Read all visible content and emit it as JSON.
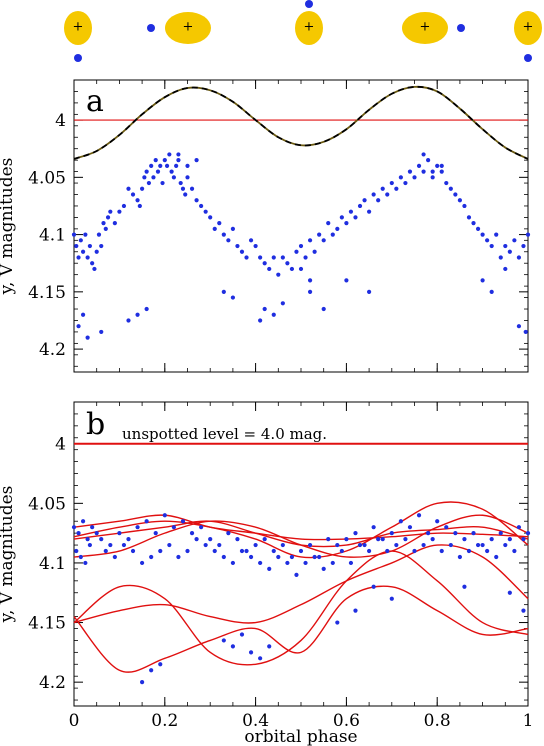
{
  "chart_data": [
    {
      "panel": "a",
      "type": "scatter",
      "ylabel": "y, V magnitudes",
      "ylim": [
        4.22,
        3.965
      ],
      "xlim": [
        0,
        1
      ],
      "yticks": [
        4,
        4.05,
        4.1,
        4.15,
        4.2
      ],
      "ytick_labels": [
        "4",
        "4.05",
        "4.1",
        "4.15",
        "4.2"
      ],
      "unspotted_level": 4.0,
      "model_curve": {
        "style": "dashed",
        "x": [
          0,
          0.05,
          0.1,
          0.15,
          0.2,
          0.25,
          0.3,
          0.35,
          0.4,
          0.45,
          0.5,
          0.55,
          0.6,
          0.65,
          0.7,
          0.75,
          0.8,
          0.85,
          0.9,
          0.95,
          1.0
        ],
        "y": [
          4.034,
          4.027,
          4.013,
          3.995,
          3.98,
          3.972,
          3.974,
          3.984,
          4.0,
          4.015,
          4.022,
          4.019,
          4.008,
          3.991,
          3.977,
          3.971,
          3.975,
          3.99,
          4.008,
          4.024,
          4.034
        ]
      },
      "series": [
        {
          "x": [
            0.0,
            0.005,
            0.01,
            0.015,
            0.02,
            0.025,
            0.03,
            0.035,
            0.04,
            0.045,
            0.05,
            0.055,
            0.06,
            0.065,
            0.07,
            0.075,
            0.08,
            0.09,
            0.1,
            0.11,
            0.12,
            0.13,
            0.14,
            0.145,
            0.15,
            0.155,
            0.16,
            0.165,
            0.17,
            0.175,
            0.18,
            0.185,
            0.19,
            0.195,
            0.2,
            0.205,
            0.21,
            0.215,
            0.22,
            0.225,
            0.23,
            0.235,
            0.24,
            0.245,
            0.25,
            0.26,
            0.27,
            0.28,
            0.29,
            0.3,
            0.31,
            0.32,
            0.33,
            0.34,
            0.35,
            0.36,
            0.37,
            0.38,
            0.39,
            0.4,
            0.41,
            0.42,
            0.43,
            0.44,
            0.45,
            0.46,
            0.47,
            0.48,
            0.49,
            0.5,
            0.51,
            0.52,
            0.53,
            0.54,
            0.55,
            0.56,
            0.57,
            0.58,
            0.59,
            0.6,
            0.61,
            0.62,
            0.63,
            0.64,
            0.65,
            0.66,
            0.67,
            0.68,
            0.69,
            0.7,
            0.71,
            0.72,
            0.73,
            0.74,
            0.75,
            0.76,
            0.77,
            0.78,
            0.79,
            0.8,
            0.81,
            0.82,
            0.83,
            0.84,
            0.85,
            0.86,
            0.87,
            0.88,
            0.89,
            0.9,
            0.91,
            0.92,
            0.93,
            0.94,
            0.95,
            0.96,
            0.97,
            0.98,
            0.99,
            1.0,
            0.01,
            0.02,
            0.03,
            0.06,
            0.12,
            0.14,
            0.16,
            0.33,
            0.35,
            0.42,
            0.44,
            0.46,
            0.52,
            0.55,
            0.9,
            0.92,
            0.95,
            0.98,
            0.995,
            0.23,
            0.25,
            0.27,
            0.77,
            0.79,
            0.81,
            0.5,
            0.52,
            0.41,
            0.6,
            0.65
          ],
          "y": [
            4.1,
            4.11,
            4.12,
            4.105,
            4.115,
            4.1,
            4.12,
            4.11,
            4.125,
            4.13,
            4.115,
            4.1,
            4.11,
            4.09,
            4.095,
            4.085,
            4.08,
            4.09,
            4.08,
            4.075,
            4.06,
            4.065,
            4.07,
            4.075,
            4.06,
            4.05,
            4.045,
            4.055,
            4.04,
            4.05,
            4.035,
            4.045,
            4.04,
            4.055,
            4.035,
            4.04,
            4.03,
            4.045,
            4.05,
            4.04,
            4.035,
            4.055,
            4.06,
            4.065,
            4.05,
            4.06,
            4.07,
            4.075,
            4.08,
            4.085,
            4.095,
            4.09,
            4.1,
            4.105,
            4.095,
            4.11,
            4.115,
            4.12,
            4.105,
            4.11,
            4.12,
            4.125,
            4.13,
            4.12,
            4.135,
            4.12,
            4.125,
            4.13,
            4.115,
            4.11,
            4.12,
            4.105,
            4.115,
            4.1,
            4.105,
            4.09,
            4.1,
            4.095,
            4.085,
            4.09,
            4.08,
            4.085,
            4.075,
            4.07,
            4.08,
            4.065,
            4.07,
            4.06,
            4.065,
            4.055,
            4.06,
            4.05,
            4.055,
            4.045,
            4.05,
            4.04,
            4.045,
            4.035,
            4.05,
            4.04,
            4.045,
            4.055,
            4.06,
            4.065,
            4.07,
            4.075,
            4.085,
            4.09,
            4.095,
            4.1,
            4.105,
            4.11,
            4.1,
            4.12,
            4.11,
            4.115,
            4.105,
            4.12,
            4.11,
            4.1,
            4.18,
            4.17,
            4.19,
            4.185,
            4.175,
            4.17,
            4.165,
            4.15,
            4.155,
            4.165,
            4.17,
            4.16,
            4.15,
            4.165,
            4.14,
            4.15,
            4.13,
            4.18,
            4.185,
            4.03,
            4.04,
            4.035,
            4.03,
            4.045,
            4.04,
            4.13,
            4.14,
            4.175,
            4.14,
            4.15
          ]
        }
      ]
    },
    {
      "panel": "b",
      "type": "scatter",
      "xlabel": "orbital phase",
      "ylabel": "y, V magnitudes",
      "ylim": [
        4.22,
        3.965
      ],
      "xlim": [
        0,
        1
      ],
      "xticks": [
        0,
        0.2,
        0.4,
        0.6,
        0.8,
        1
      ],
      "xtick_labels": [
        "0",
        "0.2",
        "0.4",
        "0.6",
        "0.8",
        "1"
      ],
      "yticks": [
        4,
        4.05,
        4.1,
        4.15,
        4.2
      ],
      "ytick_labels": [
        "4",
        "4.05",
        "4.1",
        "4.15",
        "4.2"
      ],
      "annotation": "unspotted level = 4.0 mag.",
      "unspotted_level": 4.0,
      "model_curves": [
        {
          "x": [
            0,
            0.1,
            0.2,
            0.3,
            0.4,
            0.5,
            0.6,
            0.7,
            0.8,
            0.9,
            1.0
          ],
          "y": [
            4.07,
            4.065,
            4.06,
            4.07,
            4.075,
            4.08,
            4.08,
            4.078,
            4.075,
            4.076,
            4.078
          ]
        },
        {
          "x": [
            0,
            0.1,
            0.2,
            0.3,
            0.4,
            0.5,
            0.6,
            0.7,
            0.8,
            0.9,
            1.0
          ],
          "y": [
            4.08,
            4.075,
            4.07,
            4.065,
            4.075,
            4.085,
            4.085,
            4.075,
            4.072,
            4.07,
            4.08
          ]
        },
        {
          "x": [
            0,
            0.1,
            0.2,
            0.3,
            0.4,
            0.5,
            0.6,
            0.7,
            0.8,
            0.9,
            1.0
          ],
          "y": [
            4.095,
            4.09,
            4.075,
            4.065,
            4.07,
            4.085,
            4.095,
            4.09,
            4.07,
            4.06,
            4.075
          ]
        },
        {
          "x": [
            0,
            0.1,
            0.2,
            0.3,
            0.4,
            0.5,
            0.6,
            0.7,
            0.8,
            0.9,
            1.0
          ],
          "y": [
            4.078,
            4.07,
            4.065,
            4.07,
            4.08,
            4.095,
            4.09,
            4.07,
            4.05,
            4.055,
            4.085
          ]
        },
        {
          "x": [
            0,
            0.1,
            0.2,
            0.3,
            0.4,
            0.5,
            0.6,
            0.7,
            0.8,
            0.9,
            1.0
          ],
          "y": [
            4.15,
            4.14,
            4.135,
            4.145,
            4.15,
            4.135,
            4.115,
            4.1,
            4.085,
            4.095,
            4.13
          ]
        },
        {
          "x": [
            0,
            0.1,
            0.2,
            0.3,
            0.4,
            0.5,
            0.6,
            0.7,
            0.8,
            0.9,
            1.0
          ],
          "y": [
            4.145,
            4.19,
            4.18,
            4.165,
            4.155,
            4.175,
            4.13,
            4.12,
            4.14,
            4.16,
            4.155
          ]
        },
        {
          "x": [
            0,
            0.1,
            0.2,
            0.3,
            0.4,
            0.5,
            0.6,
            0.7,
            0.8,
            0.9,
            1.0
          ],
          "y": [
            4.15,
            4.12,
            4.13,
            4.175,
            4.185,
            4.165,
            4.115,
            4.09,
            4.115,
            4.15,
            4.16
          ]
        }
      ],
      "series": [
        {
          "x": [
            0.0,
            0.01,
            0.02,
            0.03,
            0.04,
            0.05,
            0.06,
            0.08,
            0.1,
            0.12,
            0.14,
            0.16,
            0.18,
            0.2,
            0.22,
            0.24,
            0.26,
            0.28,
            0.3,
            0.32,
            0.34,
            0.36,
            0.38,
            0.4,
            0.42,
            0.44,
            0.46,
            0.48,
            0.5,
            0.52,
            0.54,
            0.56,
            0.58,
            0.6,
            0.62,
            0.64,
            0.66,
            0.68,
            0.7,
            0.72,
            0.74,
            0.76,
            0.78,
            0.8,
            0.82,
            0.84,
            0.86,
            0.88,
            0.9,
            0.92,
            0.94,
            0.96,
            0.98,
            1.0,
            0.005,
            0.015,
            0.025,
            0.035,
            0.07,
            0.09,
            0.11,
            0.13,
            0.15,
            0.17,
            0.19,
            0.21,
            0.23,
            0.25,
            0.27,
            0.29,
            0.31,
            0.33,
            0.35,
            0.37,
            0.39,
            0.41,
            0.43,
            0.45,
            0.47,
            0.49,
            0.51,
            0.53,
            0.55,
            0.57,
            0.59,
            0.61,
            0.63,
            0.65,
            0.67,
            0.69,
            0.71,
            0.73,
            0.75,
            0.77,
            0.79,
            0.81,
            0.83,
            0.85,
            0.87,
            0.89,
            0.91,
            0.93,
            0.95,
            0.97,
            0.99,
            0.15,
            0.17,
            0.19,
            0.33,
            0.35,
            0.37,
            0.39,
            0.41,
            0.43,
            0.58,
            0.62,
            0.66,
            0.7,
            0.86,
            0.96,
            0.99
          ],
          "y": [
            4.07,
            4.075,
            4.065,
            4.08,
            4.07,
            4.075,
            4.08,
            4.085,
            4.075,
            4.08,
            4.07,
            4.065,
            4.075,
            4.06,
            4.07,
            4.065,
            4.075,
            4.07,
            4.08,
            4.085,
            4.075,
            4.08,
            4.09,
            4.085,
            4.08,
            4.09,
            4.085,
            4.095,
            4.09,
            4.085,
            4.095,
            4.08,
            4.085,
            4.08,
            4.075,
            4.085,
            4.07,
            4.08,
            4.075,
            4.065,
            4.07,
            4.06,
            4.075,
            4.065,
            4.07,
            4.075,
            4.08,
            4.075,
            4.085,
            4.08,
            4.075,
            4.08,
            4.07,
            4.075,
            4.09,
            4.095,
            4.1,
            4.085,
            4.09,
            4.095,
            4.085,
            4.09,
            4.1,
            4.095,
            4.09,
            4.085,
            4.095,
            4.09,
            4.08,
            4.085,
            4.09,
            4.095,
            4.1,
            4.09,
            4.095,
            4.1,
            4.105,
            4.095,
            4.1,
            4.11,
            4.1,
            4.095,
            4.105,
            4.1,
            4.09,
            4.1,
            4.085,
            4.09,
            4.08,
            4.09,
            4.085,
            4.08,
            4.09,
            4.085,
            4.08,
            4.09,
            4.085,
            4.095,
            4.09,
            4.085,
            4.09,
            4.095,
            4.085,
            4.09,
            4.08,
            4.2,
            4.19,
            4.185,
            4.165,
            4.17,
            4.16,
            4.175,
            4.18,
            4.17,
            4.15,
            4.14,
            4.12,
            4.13,
            4.12,
            4.125,
            4.14
          ]
        }
      ]
    }
  ],
  "star_row": {
    "count": 5,
    "marker": "+"
  }
}
